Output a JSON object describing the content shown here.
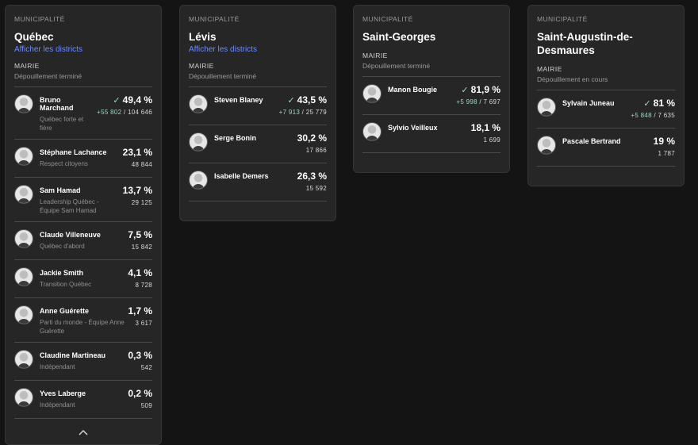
{
  "cards": [
    {
      "kicker": "MUNICIPALITÉ",
      "title": "Québec",
      "link": "Afficher les districts",
      "office": "MAIRIE",
      "status": "Dépouillement terminé",
      "collapse_icon": "chevron-up-icon",
      "candidates": [
        {
          "name": "Bruno Marchand",
          "party": "Québec forte et fière",
          "pct": "49,4 %",
          "elected": true,
          "lead": "+55 802",
          "votes": "104 646"
        },
        {
          "name": "Stéphane Lachance",
          "party": "Respect citoyens",
          "pct": "23,1 %",
          "votes": "48 844"
        },
        {
          "name": "Sam Hamad",
          "party": "Leadership Québec - Équipe Sam Hamad",
          "pct": "13,7 %",
          "votes": "29 125"
        },
        {
          "name": "Claude Villeneuve",
          "party": "Québec d'abord",
          "pct": "7,5 %",
          "votes": "15 842"
        },
        {
          "name": "Jackie Smith",
          "party": "Transition Québec",
          "pct": "4,1 %",
          "votes": "8 728"
        },
        {
          "name": "Anne Guérette",
          "party": "Parti du monde - Équipe Anne Guérette",
          "pct": "1,7 %",
          "votes": "3 617"
        },
        {
          "name": "Claudine Martineau",
          "party": "Indépendant",
          "pct": "0,3 %",
          "votes": "542"
        },
        {
          "name": "Yves Laberge",
          "party": "Indépendant",
          "pct": "0,2 %",
          "votes": "509"
        }
      ]
    },
    {
      "kicker": "MUNICIPALITÉ",
      "title": "Lévis",
      "link": "Afficher les districts",
      "office": "MAIRIE",
      "status": "Dépouillement terminé",
      "candidates": [
        {
          "name": "Steven Blaney",
          "pct": "43,5 %",
          "elected": true,
          "lead": "+7 913",
          "votes": "25 779"
        },
        {
          "name": "Serge Bonin",
          "pct": "30,2 %",
          "votes": "17 866"
        },
        {
          "name": "Isabelle Demers",
          "pct": "26,3 %",
          "votes": "15 592"
        }
      ]
    },
    {
      "kicker": "MUNICIPALITÉ",
      "title": "Saint-Georges",
      "office": "MAIRIE",
      "status": "Dépouillement terminé",
      "candidates": [
        {
          "name": "Manon Bougie",
          "pct": "81,9 %",
          "elected": true,
          "lead": "+5 998",
          "votes": "7 697"
        },
        {
          "name": "Sylvio Veilleux",
          "pct": "18,1 %",
          "votes": "1 699"
        }
      ]
    },
    {
      "kicker": "MUNICIPALITÉ",
      "title": "Saint-Augustin-de-Desmaures",
      "office": "MAIRIE",
      "status": "Dépouillement en cours",
      "candidates": [
        {
          "name": "Sylvain Juneau",
          "pct": "81 %",
          "elected": true,
          "lead": "+5 848",
          "votes": "7 635"
        },
        {
          "name": "Pascale Bertrand",
          "pct": "19 %",
          "votes": "1 787"
        }
      ]
    }
  ],
  "colors": {
    "background": "#141414",
    "card": "#262626",
    "link": "#6b8cff",
    "lead": "#9ed6c4"
  }
}
